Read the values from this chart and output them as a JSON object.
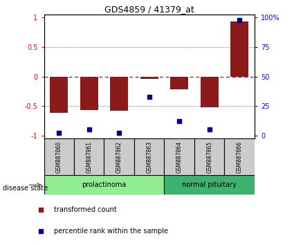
{
  "title": "GDS4859 / 41379_at",
  "samples": [
    "GSM887860",
    "GSM887861",
    "GSM887862",
    "GSM887863",
    "GSM887864",
    "GSM887865",
    "GSM887866"
  ],
  "transformed_count": [
    -0.62,
    -0.57,
    -0.575,
    -0.04,
    -0.22,
    -0.52,
    0.93
  ],
  "percentile_rank": [
    2,
    5,
    2,
    33,
    12,
    5,
    98
  ],
  "bar_color": "#8B1A1A",
  "dot_color": "#00008B",
  "zero_line_color": "#CC0000",
  "dotted_line_color": "#555555",
  "left_yticks": [
    -1,
    -0.5,
    0,
    0.5,
    1
  ],
  "left_yticklabels": [
    "-1",
    "-0.5",
    "0",
    "0.5",
    "1"
  ],
  "right_yticks": [
    0,
    25,
    50,
    75,
    100
  ],
  "right_yticklabels": [
    "0",
    "25",
    "50",
    "75",
    "100%"
  ],
  "ylim": [
    -1.05,
    1.05
  ],
  "group_defs": [
    {
      "label": "prolactinoma",
      "start": 0,
      "end": 3,
      "color": "#90EE90"
    },
    {
      "label": "normal pituitary",
      "start": 4,
      "end": 6,
      "color": "#3CB371"
    }
  ],
  "disease_state_label": "disease state",
  "legend_items": [
    {
      "label": "transformed count",
      "color": "#8B1A1A"
    },
    {
      "label": "percentile rank within the sample",
      "color": "#00008B"
    }
  ]
}
